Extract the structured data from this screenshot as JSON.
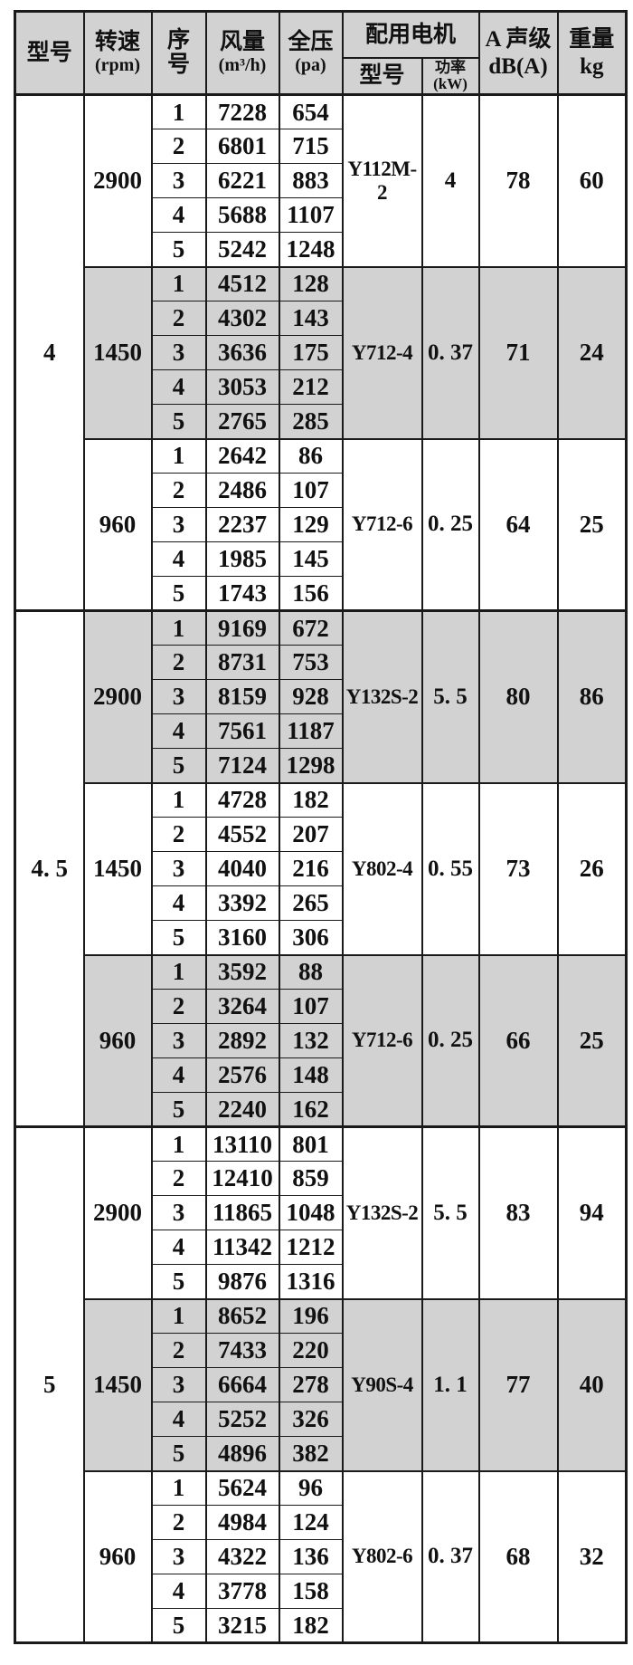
{
  "header": {
    "model": "型号",
    "speed": [
      "转速",
      "(rpm)"
    ],
    "serial": [
      "序",
      "号"
    ],
    "airflow": [
      "风量",
      "(m³/h)"
    ],
    "pressure": [
      "全压",
      "(pa)"
    ],
    "motor_group": "配用电机",
    "motor_model": "型号",
    "motor_power": [
      "功率",
      "(kW)"
    ],
    "noise": [
      "A 声级",
      "dB(A)"
    ],
    "weight": [
      "重量",
      "kg"
    ]
  },
  "colors": {
    "header_bg": "#d2d2d2",
    "shaded_row_bg": "#d2d2d2",
    "border": "#1a1a1a"
  },
  "models": [
    {
      "model": "4",
      "groups": [
        {
          "speed": "2900",
          "shaded": false,
          "motor": "Y112M-2",
          "power": "4",
          "noise": "78",
          "weight": "60",
          "rows": [
            {
              "no": "1",
              "airflow": "7228",
              "pressure": "654"
            },
            {
              "no": "2",
              "airflow": "6801",
              "pressure": "715"
            },
            {
              "no": "3",
              "airflow": "6221",
              "pressure": "883"
            },
            {
              "no": "4",
              "airflow": "5688",
              "pressure": "1107"
            },
            {
              "no": "5",
              "airflow": "5242",
              "pressure": "1248"
            }
          ]
        },
        {
          "speed": "1450",
          "shaded": true,
          "motor": "Y712-4",
          "power": "0. 37",
          "noise": "71",
          "weight": "24",
          "rows": [
            {
              "no": "1",
              "airflow": "4512",
              "pressure": "128"
            },
            {
              "no": "2",
              "airflow": "4302",
              "pressure": "143"
            },
            {
              "no": "3",
              "airflow": "3636",
              "pressure": "175"
            },
            {
              "no": "4",
              "airflow": "3053",
              "pressure": "212"
            },
            {
              "no": "5",
              "airflow": "2765",
              "pressure": "285"
            }
          ]
        },
        {
          "speed": "960",
          "shaded": false,
          "motor": "Y712-6",
          "power": "0. 25",
          "noise": "64",
          "weight": "25",
          "rows": [
            {
              "no": "1",
              "airflow": "2642",
              "pressure": "86"
            },
            {
              "no": "2",
              "airflow": "2486",
              "pressure": "107"
            },
            {
              "no": "3",
              "airflow": "2237",
              "pressure": "129"
            },
            {
              "no": "4",
              "airflow": "1985",
              "pressure": "145"
            },
            {
              "no": "5",
              "airflow": "1743",
              "pressure": "156"
            }
          ]
        }
      ]
    },
    {
      "model": "4. 5",
      "groups": [
        {
          "speed": "2900",
          "shaded": true,
          "motor": "Y132S-2",
          "power": "5. 5",
          "noise": "80",
          "weight": "86",
          "rows": [
            {
              "no": "1",
              "airflow": "9169",
              "pressure": "672"
            },
            {
              "no": "2",
              "airflow": "8731",
              "pressure": "753"
            },
            {
              "no": "3",
              "airflow": "8159",
              "pressure": "928"
            },
            {
              "no": "4",
              "airflow": "7561",
              "pressure": "1187"
            },
            {
              "no": "5",
              "airflow": "7124",
              "pressure": "1298"
            }
          ]
        },
        {
          "speed": "1450",
          "shaded": false,
          "motor": "Y802-4",
          "power": "0. 55",
          "noise": "73",
          "weight": "26",
          "rows": [
            {
              "no": "1",
              "airflow": "4728",
              "pressure": "182"
            },
            {
              "no": "2",
              "airflow": "4552",
              "pressure": "207"
            },
            {
              "no": "3",
              "airflow": "4040",
              "pressure": "216"
            },
            {
              "no": "4",
              "airflow": "3392",
              "pressure": "265"
            },
            {
              "no": "5",
              "airflow": "3160",
              "pressure": "306"
            }
          ]
        },
        {
          "speed": "960",
          "shaded": true,
          "motor": "Y712-6",
          "power": "0. 25",
          "noise": "66",
          "weight": "25",
          "rows": [
            {
              "no": "1",
              "airflow": "3592",
              "pressure": "88"
            },
            {
              "no": "2",
              "airflow": "3264",
              "pressure": "107"
            },
            {
              "no": "3",
              "airflow": "2892",
              "pressure": "132"
            },
            {
              "no": "4",
              "airflow": "2576",
              "pressure": "148"
            },
            {
              "no": "5",
              "airflow": "2240",
              "pressure": "162"
            }
          ]
        }
      ]
    },
    {
      "model": "5",
      "groups": [
        {
          "speed": "2900",
          "shaded": false,
          "motor": "Y132S-2",
          "power": "5. 5",
          "noise": "83",
          "weight": "94",
          "rows": [
            {
              "no": "1",
              "airflow": "13110",
              "pressure": "801"
            },
            {
              "no": "2",
              "airflow": "12410",
              "pressure": "859"
            },
            {
              "no": "3",
              "airflow": "11865",
              "pressure": "1048"
            },
            {
              "no": "4",
              "airflow": "11342",
              "pressure": "1212"
            },
            {
              "no": "5",
              "airflow": "9876",
              "pressure": "1316"
            }
          ]
        },
        {
          "speed": "1450",
          "shaded": true,
          "motor": "Y90S-4",
          "power": "1. 1",
          "noise": "77",
          "weight": "40",
          "rows": [
            {
              "no": "1",
              "airflow": "8652",
              "pressure": "196"
            },
            {
              "no": "2",
              "airflow": "7433",
              "pressure": "220"
            },
            {
              "no": "3",
              "airflow": "6664",
              "pressure": "278"
            },
            {
              "no": "4",
              "airflow": "5252",
              "pressure": "326"
            },
            {
              "no": "5",
              "airflow": "4896",
              "pressure": "382"
            }
          ]
        },
        {
          "speed": "960",
          "shaded": false,
          "motor": "Y802-6",
          "power": "0. 37",
          "noise": "68",
          "weight": "32",
          "rows": [
            {
              "no": "1",
              "airflow": "5624",
              "pressure": "96"
            },
            {
              "no": "2",
              "airflow": "4984",
              "pressure": "124"
            },
            {
              "no": "3",
              "airflow": "4322",
              "pressure": "136"
            },
            {
              "no": "4",
              "airflow": "3778",
              "pressure": "158"
            },
            {
              "no": "5",
              "airflow": "3215",
              "pressure": "182"
            }
          ]
        }
      ]
    }
  ]
}
